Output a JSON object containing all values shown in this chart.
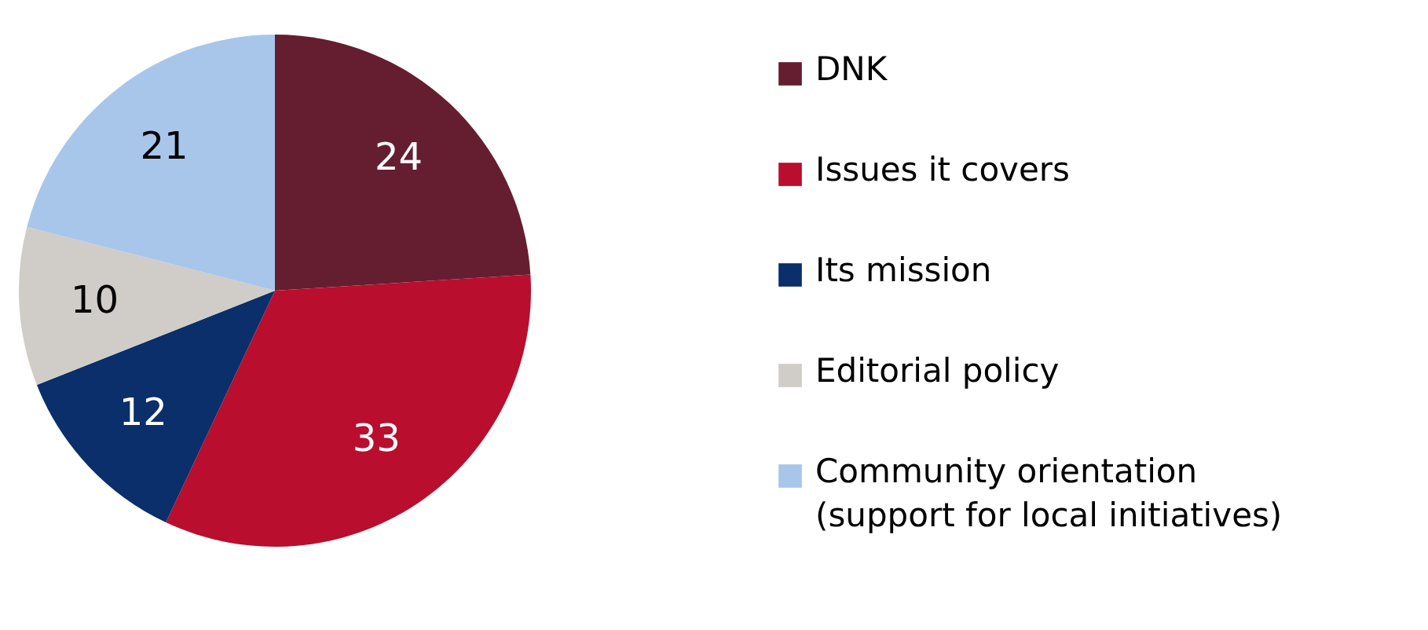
{
  "chart_data": {
    "type": "pie",
    "categories": [
      "DNK",
      "Issues it covers",
      "Its mission",
      "Editorial policy",
      "Community orientation (support for local initiatives)"
    ],
    "values": [
      24,
      33,
      12,
      10,
      21
    ],
    "colors": [
      "#641e30",
      "#b90e2e",
      "#0a2f6a",
      "#d0ccc8",
      "#a8c6ea"
    ],
    "data_labels": true,
    "legend": "right"
  }
}
